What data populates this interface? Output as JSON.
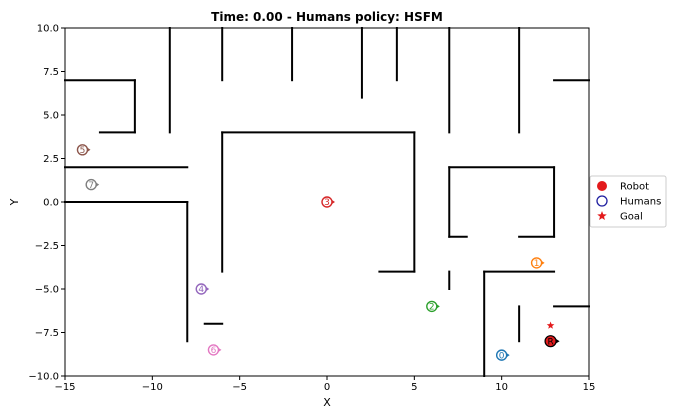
{
  "chart_data": {
    "type": "scatter",
    "title": "Time: 0.00 - Humans policy: HSFM",
    "xlabel": "X",
    "ylabel": "Y",
    "xlim": [
      -15,
      15
    ],
    "ylim": [
      -10,
      10
    ],
    "xticks": [
      -15,
      -10,
      -5,
      0,
      5,
      10,
      15
    ],
    "yticks": [
      -10.0,
      -7.5,
      -5.0,
      -2.5,
      0.0,
      2.5,
      5.0,
      7.5,
      10.0
    ],
    "xtick_labels": [
      "−15",
      "−10",
      "−5",
      "0",
      "5",
      "10",
      "15"
    ],
    "ytick_labels": [
      "−10.0",
      "−7.5",
      "−5.0",
      "−2.5",
      "0.0",
      "2.5",
      "5.0",
      "7.5",
      "10.0"
    ],
    "grid": false,
    "legend_position": "right",
    "legend": [
      {
        "label": "Robot",
        "marker": "filled-circle",
        "color": "#e31a1c"
      },
      {
        "label": "Humans",
        "marker": "hollow-circle",
        "color": "#1f1fa0"
      },
      {
        "label": "Goal",
        "marker": "star",
        "color": "#e31a1c"
      }
    ],
    "robot": {
      "label": "R",
      "x": 12.8,
      "y": -8.0,
      "color": "#e31a1c"
    },
    "goal": {
      "x": 12.8,
      "y": -7.1,
      "color": "#e31a1c"
    },
    "humans": [
      {
        "id": "0",
        "x": 10.0,
        "y": -8.8,
        "color": "#1f77b4"
      },
      {
        "id": "1",
        "x": 12.0,
        "y": -3.5,
        "color": "#ff7f0e"
      },
      {
        "id": "2",
        "x": 6.0,
        "y": -6.0,
        "color": "#2ca02c"
      },
      {
        "id": "3",
        "x": 0.0,
        "y": 0.0,
        "color": "#d62728"
      },
      {
        "id": "4",
        "x": -7.2,
        "y": -5.0,
        "color": "#9467bd"
      },
      {
        "id": "5",
        "x": -14.0,
        "y": 3.0,
        "color": "#8c564b"
      },
      {
        "id": "6",
        "x": -6.5,
        "y": -8.5,
        "color": "#e377c2"
      },
      {
        "id": "7",
        "x": -13.5,
        "y": 1.0,
        "color": "#7f7f7f"
      }
    ],
    "walls": [
      [
        [
          -15,
          7
        ],
        [
          -11,
          7
        ]
      ],
      [
        [
          -11,
          7
        ],
        [
          -11,
          4
        ]
      ],
      [
        [
          -11,
          4
        ],
        [
          -13,
          4
        ]
      ],
      [
        [
          -9,
          10
        ],
        [
          -9,
          4
        ]
      ],
      [
        [
          -6,
          10
        ],
        [
          -6,
          7
        ]
      ],
      [
        [
          -2,
          10
        ],
        [
          -2,
          7
        ]
      ],
      [
        [
          2,
          10
        ],
        [
          2,
          6
        ]
      ],
      [
        [
          4,
          10
        ],
        [
          4,
          7
        ]
      ],
      [
        [
          7,
          10
        ],
        [
          7,
          4
        ]
      ],
      [
        [
          11,
          10
        ],
        [
          11,
          4
        ]
      ],
      [
        [
          13,
          7
        ],
        [
          15,
          7
        ]
      ],
      [
        [
          -15,
          2
        ],
        [
          -8,
          2
        ]
      ],
      [
        [
          -15,
          0
        ],
        [
          -8,
          0
        ]
      ],
      [
        [
          -8,
          0
        ],
        [
          -8,
          -8
        ]
      ],
      [
        [
          -6,
          4
        ],
        [
          -6,
          -4
        ]
      ],
      [
        [
          -6,
          4
        ],
        [
          5,
          4
        ]
      ],
      [
        [
          5,
          4
        ],
        [
          5,
          -4
        ]
      ],
      [
        [
          3,
          -4
        ],
        [
          5,
          -4
        ]
      ],
      [
        [
          7,
          2
        ],
        [
          13,
          2
        ]
      ],
      [
        [
          7,
          2
        ],
        [
          7,
          -2
        ]
      ],
      [
        [
          7,
          -2
        ],
        [
          8,
          -2
        ]
      ],
      [
        [
          13,
          2
        ],
        [
          13,
          -2
        ]
      ],
      [
        [
          11,
          -2
        ],
        [
          13,
          -2
        ]
      ],
      [
        [
          7,
          -4
        ],
        [
          7,
          -5
        ]
      ],
      [
        [
          9,
          -4
        ],
        [
          13,
          -4
        ]
      ],
      [
        [
          9,
          -4
        ],
        [
          9,
          -10
        ]
      ],
      [
        [
          11,
          -6
        ],
        [
          11,
          -8
        ]
      ],
      [
        [
          13,
          -6
        ],
        [
          15,
          -6
        ]
      ],
      [
        [
          -7,
          -7
        ],
        [
          -6,
          -7
        ]
      ]
    ]
  }
}
